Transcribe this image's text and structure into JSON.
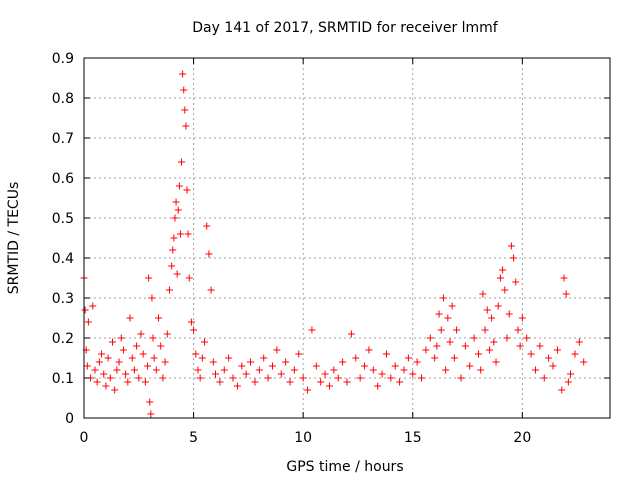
{
  "chart_data": {
    "type": "scatter",
    "title": "Day 141 of 2017, SRMTID for receiver lmmf",
    "xlabel": "GPS time / hours",
    "ylabel": "SRMTID / TECUs",
    "xlim": [
      0,
      24
    ],
    "ylim": [
      0,
      0.9
    ],
    "x_ticks": [
      0,
      5,
      10,
      15,
      20
    ],
    "x_tick_labels": [
      "0",
      "5",
      "10",
      "15",
      "20"
    ],
    "y_ticks": [
      0,
      0.1,
      0.2,
      0.3,
      0.4,
      0.5,
      0.6,
      0.7,
      0.8,
      0.9
    ],
    "y_tick_labels": [
      "0",
      "0.1",
      "0.2",
      "0.3",
      "0.4",
      "0.5",
      "0.6",
      "0.7",
      "0.8",
      "0.9"
    ],
    "grid": true,
    "marker": "plus",
    "marker_color": "#ff0000",
    "series": [
      {
        "name": "SRMTID",
        "x": [
          0.0,
          0.05,
          0.1,
          0.15,
          0.2,
          0.3,
          0.4,
          0.5,
          0.6,
          0.7,
          0.8,
          0.9,
          1.0,
          1.1,
          1.2,
          1.3,
          1.4,
          1.5,
          1.6,
          1.7,
          1.8,
          1.9,
          2.0,
          2.1,
          2.2,
          2.3,
          2.4,
          2.5,
          2.6,
          2.7,
          2.8,
          2.9,
          2.95,
          3.0,
          3.05,
          3.1,
          3.15,
          3.2,
          3.3,
          3.4,
          3.5,
          3.6,
          3.7,
          3.8,
          3.9,
          4.0,
          4.05,
          4.1,
          4.15,
          4.2,
          4.25,
          4.3,
          4.35,
          4.4,
          4.45,
          4.5,
          4.55,
          4.6,
          4.65,
          4.7,
          4.75,
          4.8,
          4.9,
          5.0,
          5.1,
          5.2,
          5.3,
          5.4,
          5.5,
          5.6,
          5.7,
          5.8,
          5.9,
          6.0,
          6.2,
          6.4,
          6.6,
          6.8,
          7.0,
          7.2,
          7.4,
          7.6,
          7.8,
          8.0,
          8.2,
          8.4,
          8.6,
          8.8,
          9.0,
          9.2,
          9.4,
          9.6,
          9.8,
          10.0,
          10.2,
          10.4,
          10.6,
          10.8,
          11.0,
          11.2,
          11.4,
          11.6,
          11.8,
          12.0,
          12.2,
          12.4,
          12.6,
          12.8,
          13.0,
          13.2,
          13.4,
          13.6,
          13.8,
          14.0,
          14.2,
          14.4,
          14.6,
          14.8,
          15.0,
          15.2,
          15.4,
          15.6,
          15.8,
          16.0,
          16.1,
          16.2,
          16.3,
          16.4,
          16.5,
          16.6,
          16.7,
          16.8,
          16.9,
          17.0,
          17.2,
          17.4,
          17.6,
          17.8,
          18.0,
          18.1,
          18.2,
          18.3,
          18.4,
          18.5,
          18.6,
          18.7,
          18.8,
          18.9,
          19.0,
          19.1,
          19.2,
          19.3,
          19.4,
          19.5,
          19.6,
          19.7,
          19.8,
          19.9,
          20.0,
          20.2,
          20.4,
          20.6,
          20.8,
          21.0,
          21.2,
          21.4,
          21.6,
          21.8,
          21.9,
          22.0,
          22.1,
          22.2,
          22.4,
          22.6,
          22.8
        ],
        "y": [
          0.35,
          0.27,
          0.17,
          0.13,
          0.24,
          0.1,
          0.28,
          0.12,
          0.09,
          0.14,
          0.16,
          0.11,
          0.08,
          0.15,
          0.1,
          0.19,
          0.07,
          0.12,
          0.14,
          0.2,
          0.17,
          0.11,
          0.09,
          0.25,
          0.15,
          0.12,
          0.18,
          0.1,
          0.21,
          0.16,
          0.09,
          0.13,
          0.35,
          0.04,
          0.01,
          0.3,
          0.2,
          0.15,
          0.12,
          0.25,
          0.18,
          0.1,
          0.14,
          0.21,
          0.32,
          0.38,
          0.42,
          0.45,
          0.5,
          0.54,
          0.36,
          0.52,
          0.58,
          0.46,
          0.64,
          0.86,
          0.82,
          0.77,
          0.73,
          0.57,
          0.46,
          0.35,
          0.24,
          0.22,
          0.16,
          0.12,
          0.1,
          0.15,
          0.19,
          0.48,
          0.41,
          0.32,
          0.14,
          0.11,
          0.09,
          0.12,
          0.15,
          0.1,
          0.08,
          0.13,
          0.11,
          0.14,
          0.09,
          0.12,
          0.15,
          0.1,
          0.13,
          0.17,
          0.11,
          0.14,
          0.09,
          0.12,
          0.16,
          0.1,
          0.07,
          0.22,
          0.13,
          0.09,
          0.11,
          0.08,
          0.12,
          0.1,
          0.14,
          0.09,
          0.21,
          0.15,
          0.1,
          0.13,
          0.17,
          0.12,
          0.08,
          0.11,
          0.16,
          0.1,
          0.13,
          0.09,
          0.12,
          0.15,
          0.11,
          0.14,
          0.1,
          0.17,
          0.2,
          0.15,
          0.18,
          0.26,
          0.22,
          0.3,
          0.12,
          0.25,
          0.19,
          0.28,
          0.15,
          0.22,
          0.1,
          0.18,
          0.13,
          0.2,
          0.16,
          0.12,
          0.31,
          0.22,
          0.27,
          0.17,
          0.25,
          0.19,
          0.14,
          0.28,
          0.35,
          0.37,
          0.32,
          0.2,
          0.26,
          0.43,
          0.4,
          0.34,
          0.22,
          0.18,
          0.25,
          0.2,
          0.16,
          0.12,
          0.18,
          0.1,
          0.15,
          0.13,
          0.17,
          0.07,
          0.35,
          0.31,
          0.09,
          0.11,
          0.16,
          0.19,
          0.14
        ]
      }
    ]
  }
}
